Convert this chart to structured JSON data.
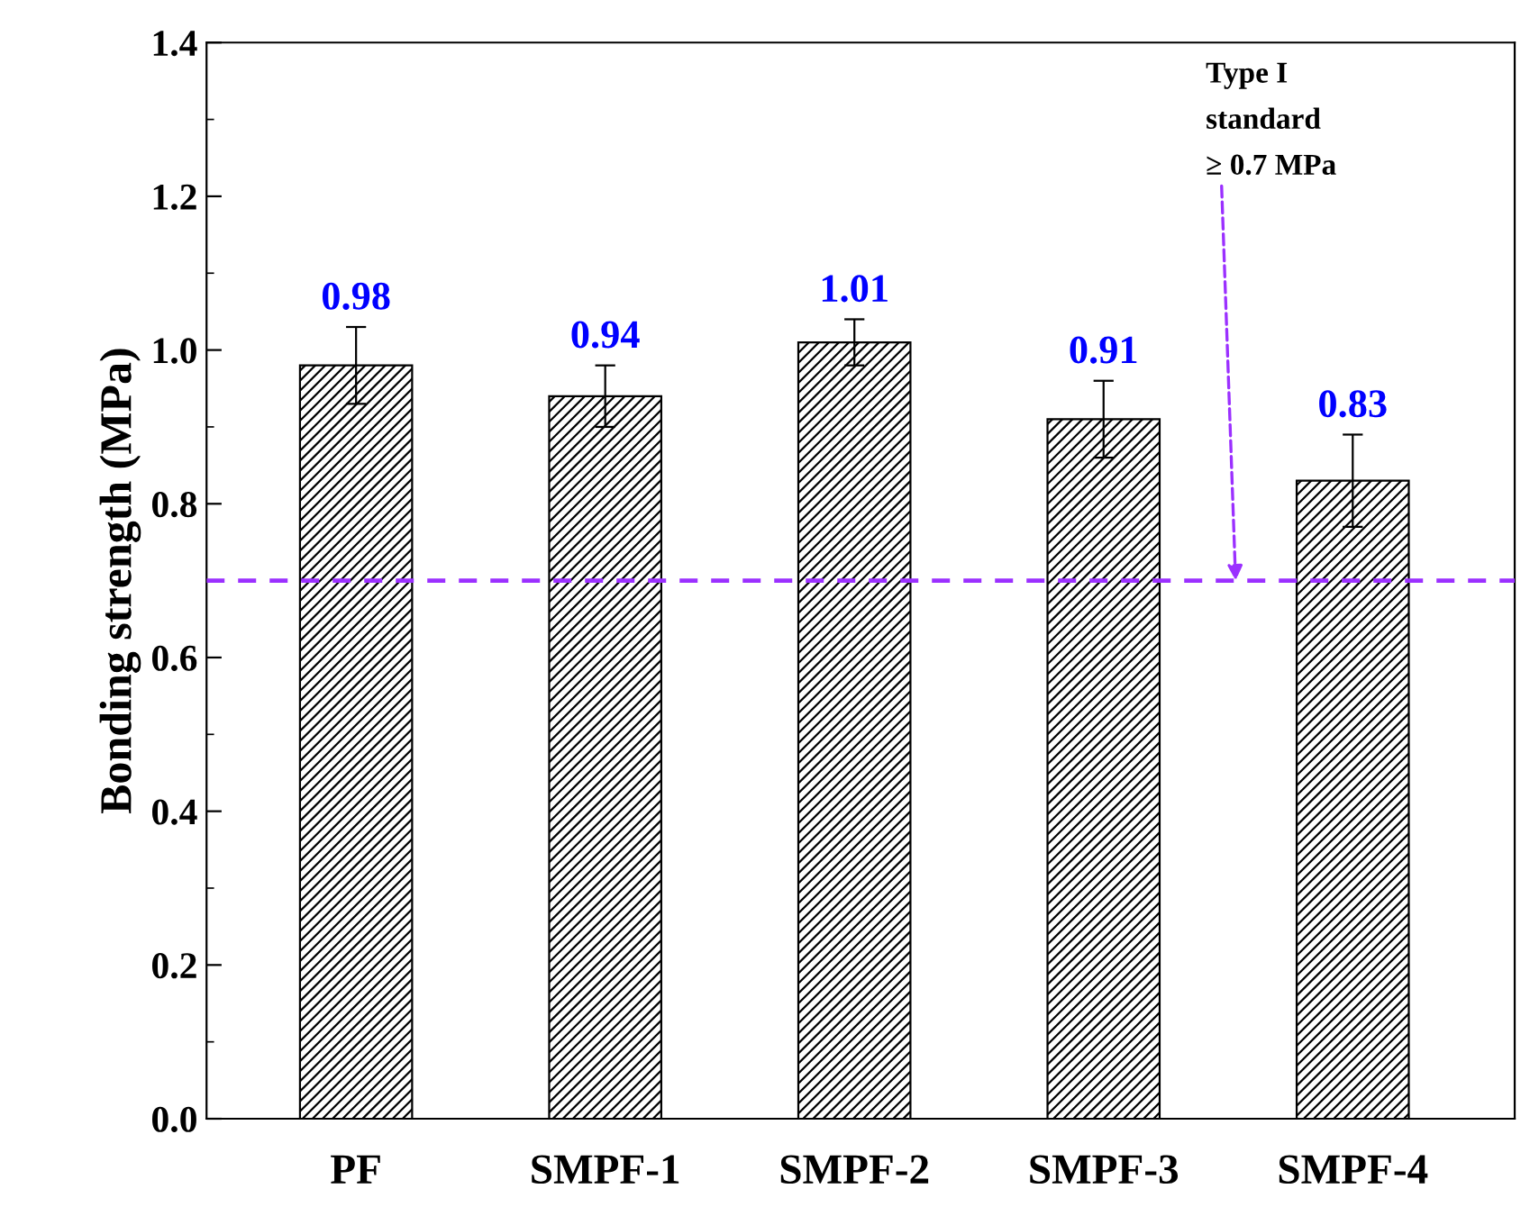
{
  "chart_data": {
    "type": "bar",
    "ylabel": "Bonding strength (MPa)",
    "categories": [
      "PF",
      "SMPF-1",
      "SMPF-2",
      "SMPF-3",
      "SMPF-4"
    ],
    "series": [
      {
        "color": "#000000",
        "values": [
          0.98,
          0.94,
          1.01,
          0.91,
          0.83
        ],
        "errors": [
          0.05,
          0.04,
          0.03,
          0.05,
          0.06
        ]
      }
    ],
    "data_labels": true,
    "ylim": [
      0,
      1.4
    ],
    "yticks": [
      {
        "value": 0,
        "label": "0.0"
      },
      {
        "value": 0.2,
        "label": "0.2"
      },
      {
        "value": 0.4,
        "label": "0.4"
      },
      {
        "value": 0.6,
        "label": "0.6"
      },
      {
        "value": 0.8,
        "label": "0.8"
      },
      {
        "value": 1.0,
        "label": "1.0"
      },
      {
        "value": 1.2,
        "label": "1.2"
      },
      {
        "value": 1.4,
        "label": "1.4"
      }
    ],
    "ref_lines": [
      {
        "axis": "y",
        "value": 0.7,
        "label": "Type I\nstandard\n≥ 0.7 MPa",
        "color": "#9b30ff",
        "line_style": "dashed"
      }
    ],
    "grid": false,
    "legend": false
  }
}
